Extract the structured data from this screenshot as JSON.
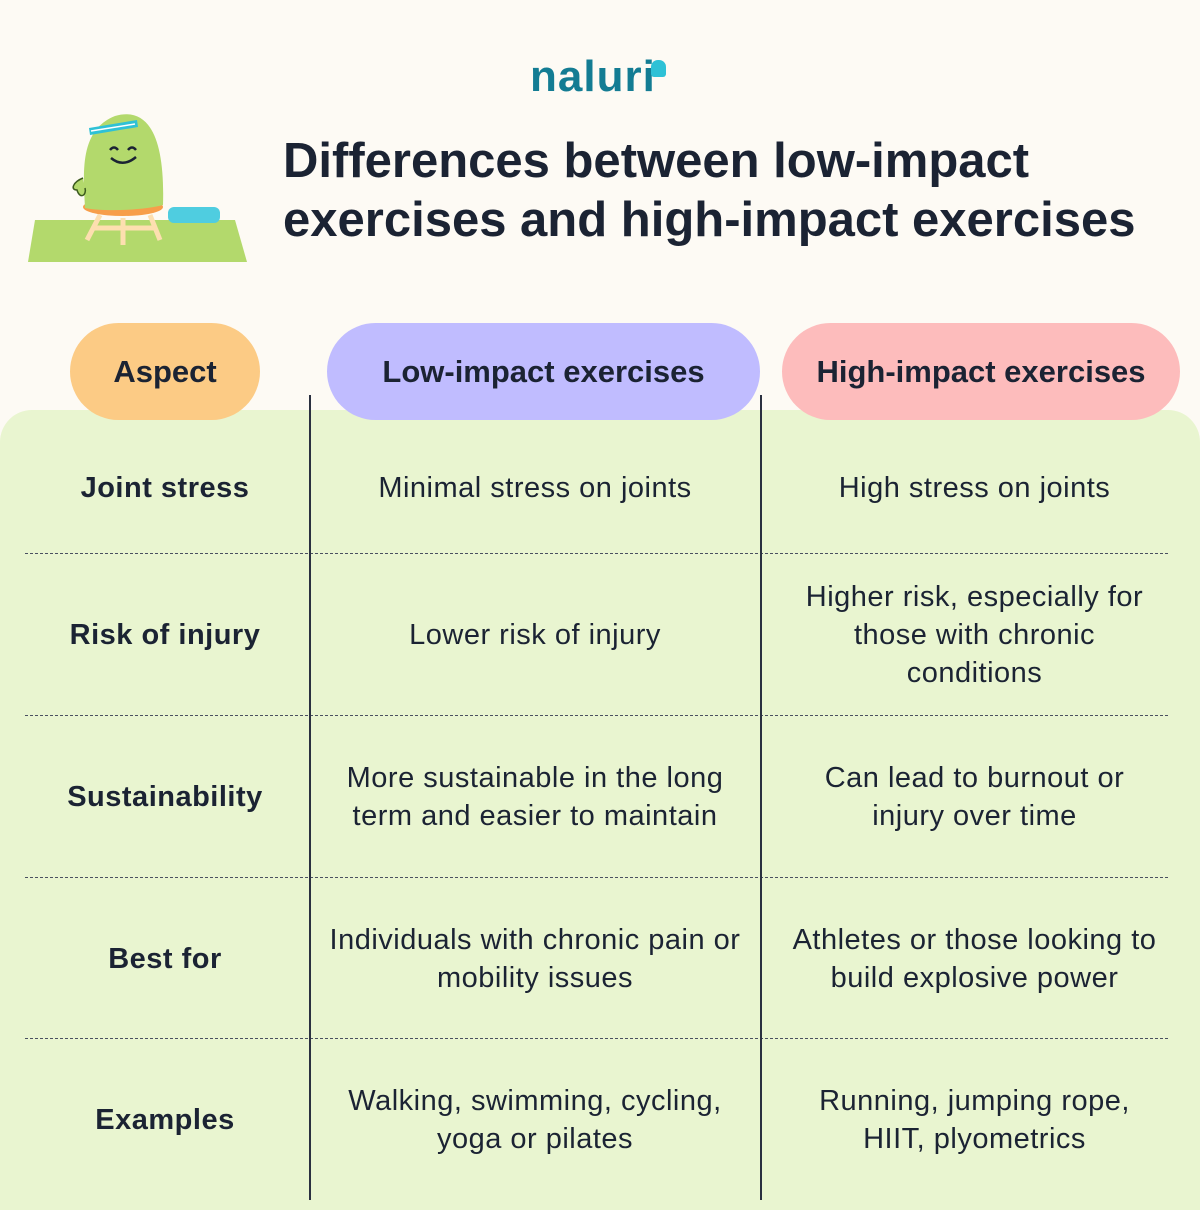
{
  "brand": "naluri",
  "title": "Differences between low-impact exercises and high-impact exercises",
  "headers": [
    "Aspect",
    "Low-impact exercises",
    "High-impact exercises"
  ],
  "colors": {
    "aspect": "#fccb85",
    "low": "#c0bcff",
    "high": "#fdbcbc",
    "panel": "#e9f5d0",
    "background": "#fdfaf4"
  },
  "rows": [
    {
      "aspect": "Joint stress",
      "low": "Minimal stress on joints",
      "high": "High stress on joints"
    },
    {
      "aspect": "Risk of injury",
      "low": "Lower risk of injury",
      "high": "Higher risk, especially for those with chronic conditions"
    },
    {
      "aspect": "Sustainability",
      "low": "More sustainable in the long term and easier to maintain",
      "high": "Can lead to burnout or injury over time"
    },
    {
      "aspect": "Best for",
      "low": "Individuals with chronic pain or mobility issues",
      "high": "Athletes or those looking to build explosive power"
    },
    {
      "aspect": "Examples",
      "low": "Walking, swimming, cycling, yoga or pilates",
      "high": "Running, jumping rope, HIIT, plyometrics"
    }
  ]
}
